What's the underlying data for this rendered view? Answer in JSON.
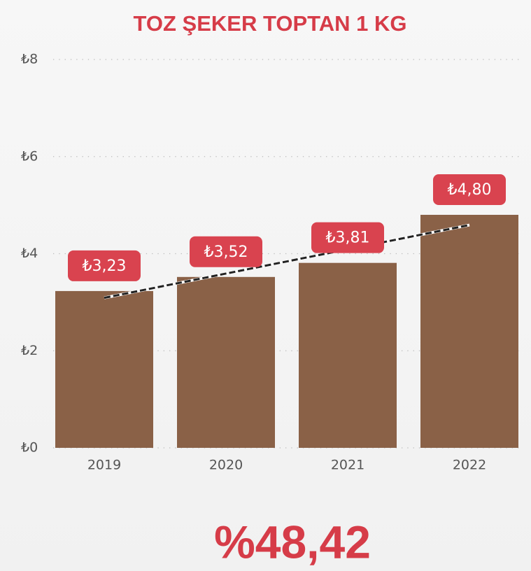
{
  "chart_data": {
    "type": "bar",
    "title": "TOZ ŞEKER TOPTAN 1 KG",
    "categories": [
      "2019",
      "2020",
      "2021",
      "2022"
    ],
    "values": [
      3.23,
      3.52,
      3.81,
      4.8
    ],
    "value_labels": [
      "₺3,23",
      "₺3,52",
      "₺3,81",
      "₺4,80"
    ],
    "color": "#8a6147",
    "label_color": "#d9434f",
    "ylim": [
      0,
      8
    ],
    "yticks": [
      {
        "value": 0,
        "label": "₺0"
      },
      {
        "value": 2,
        "label": "₺2"
      },
      {
        "value": 4,
        "label": "₺4"
      },
      {
        "value": 6,
        "label": "₺6"
      },
      {
        "value": 8,
        "label": "₺8"
      }
    ],
    "grid": true,
    "trendline": true,
    "annotation": "%48,42"
  }
}
